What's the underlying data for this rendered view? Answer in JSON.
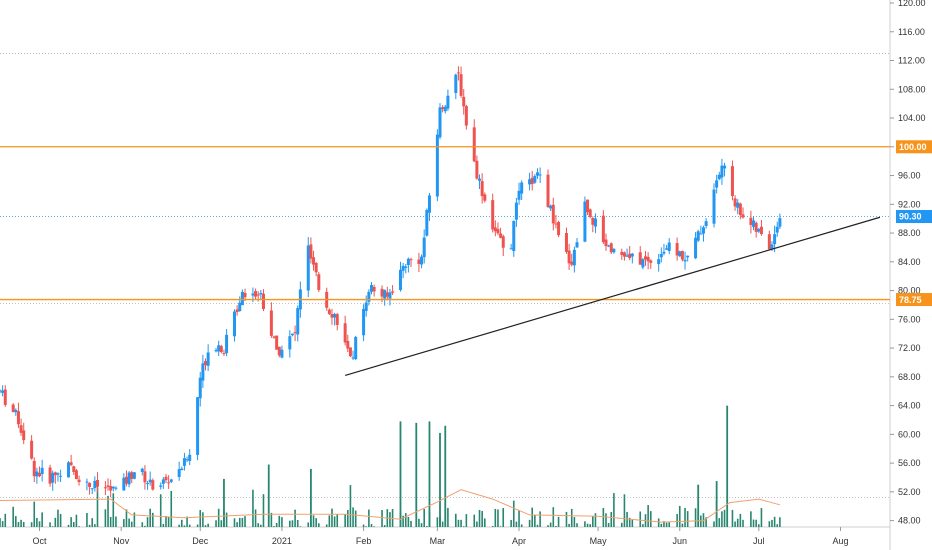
{
  "chart_data": {
    "type": "candlestick",
    "title": "",
    "xlabel": "",
    "ylabel": "",
    "ylim": [
      46,
      120
    ],
    "y_ticks": [
      "48.00",
      "52.00",
      "56.00",
      "60.00",
      "64.00",
      "68.00",
      "72.00",
      "76.00",
      "80.00",
      "84.00",
      "88.00",
      "92.00",
      "96.00",
      "100.00",
      "104.00",
      "108.00",
      "112.00",
      "116.00",
      "120.00"
    ],
    "x_ticks": [
      {
        "label": "Oct",
        "date": "2020-10-01"
      },
      {
        "label": "Nov",
        "date": "2020-11-01"
      },
      {
        "label": "Dec",
        "date": "2020-12-01"
      },
      {
        "label": "2021",
        "date": "2021-01-01"
      },
      {
        "label": "Feb",
        "date": "2021-02-01"
      },
      {
        "label": "Mar",
        "date": "2021-03-01"
      },
      {
        "label": "Apr",
        "date": "2021-04-01"
      },
      {
        "label": "May",
        "date": "2021-05-01"
      },
      {
        "label": "Jun",
        "date": "2021-06-01"
      },
      {
        "label": "Jul",
        "date": "2021-07-01"
      },
      {
        "label": "Aug",
        "date": "2021-08-01"
      }
    ],
    "x_range": [
      "2020-09-16",
      "2021-08-16"
    ],
    "up_color": "#2196f3",
    "down_color": "#ef5350",
    "volume_color": "#26866f",
    "volume_ma_color": "#f0a070",
    "horizontal_levels": [
      {
        "value": 100.0,
        "label": "100.00",
        "color": "#f7931a"
      },
      {
        "value": 78.75,
        "label": "78.75",
        "color": "#f7931a"
      }
    ],
    "last_price": {
      "value": 90.3,
      "label": "90.30",
      "color": "#2196f3"
    },
    "dotted_levels": [
      113.0,
      78.2
    ],
    "trendline": {
      "start": {
        "date": "2021-01-25",
        "price": 68.2
      },
      "end": {
        "date": "2021-08-16",
        "price": 90.2
      },
      "color": "#222222"
    },
    "anchors": [
      [
        "2020-09-16",
        66.0
      ],
      [
        "2020-09-23",
        62.0
      ],
      [
        "2020-09-29",
        55.0
      ],
      [
        "2020-10-05",
        54.0
      ],
      [
        "2020-10-12",
        55.5
      ],
      [
        "2020-10-19",
        53.0
      ],
      [
        "2020-10-26",
        52.5
      ],
      [
        "2020-10-31",
        52.2
      ],
      [
        "2020-11-07",
        55.5
      ],
      [
        "2020-11-12",
        53.0
      ],
      [
        "2020-11-19",
        53.5
      ],
      [
        "2020-11-27",
        57.0
      ],
      [
        "2020-12-01",
        68.0
      ],
      [
        "2020-12-05",
        73.0
      ],
      [
        "2020-12-10",
        72.0
      ],
      [
        "2020-12-17",
        80.0
      ],
      [
        "2020-12-24",
        79.5
      ],
      [
        "2020-12-30",
        71.5
      ],
      [
        "2021-01-06",
        74.0
      ],
      [
        "2021-01-10",
        87.0
      ],
      [
        "2021-01-16",
        79.0
      ],
      [
        "2021-01-22",
        76.0
      ],
      [
        "2021-01-27",
        70.0
      ],
      [
        "2021-02-03",
        80.5
      ],
      [
        "2021-02-10",
        79.0
      ],
      [
        "2021-02-17",
        84.0
      ],
      [
        "2021-02-23",
        84.5
      ],
      [
        "2021-03-02",
        105.0
      ],
      [
        "2021-03-09",
        110.0
      ],
      [
        "2021-03-14",
        99.0
      ],
      [
        "2021-03-21",
        90.0
      ],
      [
        "2021-03-28",
        84.0
      ],
      [
        "2021-04-01",
        94.0
      ],
      [
        "2021-04-09",
        96.0
      ],
      [
        "2021-04-17",
        86.0
      ],
      [
        "2021-04-21",
        84.0
      ],
      [
        "2021-04-26",
        92.0
      ],
      [
        "2021-05-04",
        86.5
      ],
      [
        "2021-05-12",
        84.5
      ],
      [
        "2021-05-20",
        84.0
      ],
      [
        "2021-05-27",
        86.0
      ],
      [
        "2021-06-04",
        84.5
      ],
      [
        "2021-06-11",
        90.0
      ],
      [
        "2021-06-17",
        97.5
      ],
      [
        "2021-06-23",
        91.5
      ],
      [
        "2021-07-01",
        88.0
      ],
      [
        "2021-07-05",
        86.0
      ],
      [
        "2021-07-09",
        90.3
      ]
    ],
    "volume_ma_anchors": [
      [
        "2020-09-16",
        50.8
      ],
      [
        "2020-10-28",
        51.0
      ],
      [
        "2020-11-05",
        48.8
      ],
      [
        "2020-11-25",
        48.4
      ],
      [
        "2020-12-25",
        48.9
      ],
      [
        "2021-01-25",
        48.9
      ],
      [
        "2021-02-15",
        48.2
      ],
      [
        "2021-03-01",
        50.6
      ],
      [
        "2021-03-10",
        52.3
      ],
      [
        "2021-03-22",
        51.0
      ],
      [
        "2021-04-05",
        48.8
      ],
      [
        "2021-05-01",
        48.6
      ],
      [
        "2021-05-25",
        47.8
      ],
      [
        "2021-06-10",
        48.0
      ],
      [
        "2021-06-20",
        50.5
      ],
      [
        "2021-07-01",
        51.0
      ],
      [
        "2021-07-09",
        50.2
      ]
    ],
    "volume_spikes": [
      [
        "2021-02-15",
        61.8
      ],
      [
        "2021-02-21",
        61.6
      ],
      [
        "2021-02-26",
        61.8
      ],
      [
        "2021-03-02",
        60.2
      ],
      [
        "2021-03-04",
        61.2
      ],
      [
        "2021-06-19",
        64.0
      ],
      [
        "2020-12-27",
        55.8
      ],
      [
        "2021-01-12",
        55.2
      ],
      [
        "2020-12-10",
        53.8
      ],
      [
        "2021-06-08",
        53.0
      ],
      [
        "2021-06-15",
        53.5
      ]
    ]
  }
}
